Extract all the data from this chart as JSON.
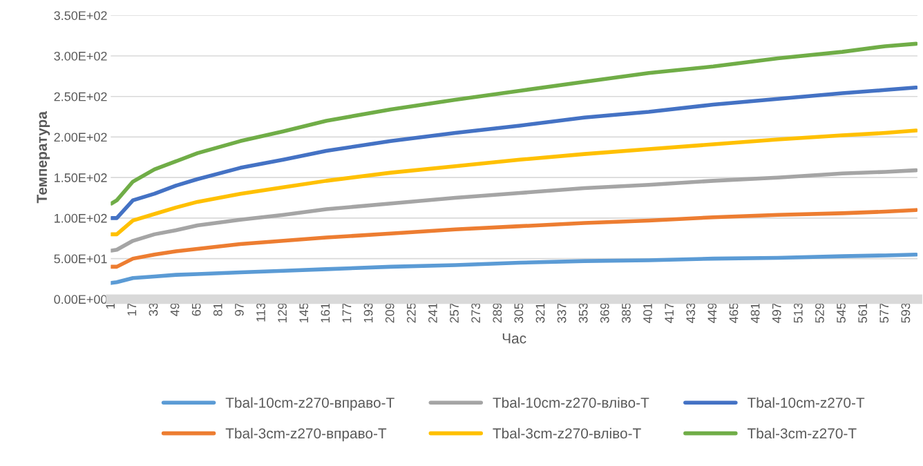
{
  "chart_data": {
    "type": "line",
    "xlabel": "Час",
    "ylabel": "Температура",
    "x": [
      1,
      5,
      17,
      33,
      49,
      65,
      97,
      129,
      161,
      209,
      257,
      305,
      353,
      401,
      449,
      497,
      545,
      577,
      600
    ],
    "series": [
      {
        "name": "Tbal-10cm-z270-вправо-T",
        "color": "#5b9bd5",
        "values": [
          20,
          21,
          26,
          28,
          30,
          31,
          33,
          35,
          37,
          40,
          42,
          45,
          47,
          48,
          50,
          51,
          53,
          54,
          55
        ]
      },
      {
        "name": "Tbal-3cm-z270-вправо-T",
        "color": "#ed7d31",
        "values": [
          40,
          40,
          50,
          55,
          59,
          62,
          68,
          72,
          76,
          81,
          86,
          90,
          94,
          97,
          101,
          104,
          106,
          108,
          110
        ]
      },
      {
        "name": "Tbal-10cm-z270-вліво-T",
        "color": "#a5a5a5",
        "values": [
          60,
          61,
          72,
          80,
          85,
          91,
          98,
          104,
          111,
          118,
          125,
          131,
          137,
          141,
          146,
          150,
          155,
          157,
          159
        ]
      },
      {
        "name": "Tbal-3cm-z270-вліво-T",
        "color": "#ffc000",
        "values": [
          80,
          80,
          97,
          105,
          113,
          120,
          130,
          138,
          146,
          156,
          164,
          172,
          179,
          185,
          191,
          197,
          202,
          205,
          208
        ]
      },
      {
        "name": "Tbal-10cm-z270-T",
        "color": "#4472c4",
        "values": [
          100,
          100,
          122,
          130,
          140,
          148,
          162,
          172,
          183,
          195,
          205,
          214,
          224,
          231,
          240,
          247,
          254,
          258,
          261
        ]
      },
      {
        "name": "Tbal-3cm-z270-T",
        "color": "#70ad47",
        "values": [
          118,
          122,
          145,
          160,
          170,
          180,
          195,
          207,
          220,
          234,
          246,
          257,
          268,
          279,
          287,
          297,
          305,
          312,
          315
        ]
      }
    ],
    "xlim": [
      0.5,
      601
    ],
    "xticks": [
      1,
      17,
      33,
      49,
      65,
      81,
      97,
      113,
      129,
      145,
      161,
      177,
      193,
      209,
      225,
      241,
      257,
      273,
      289,
      305,
      321,
      337,
      353,
      369,
      385,
      401,
      417,
      433,
      449,
      465,
      481,
      497,
      513,
      529,
      545,
      561,
      577,
      593
    ],
    "ylim": [
      0,
      350
    ],
    "yticks": [
      {
        "value": 0,
        "label": "0.00E+00"
      },
      {
        "value": 50,
        "label": "5.00E+01"
      },
      {
        "value": 100,
        "label": "1.00E+02"
      },
      {
        "value": 150,
        "label": "1.50E+02"
      },
      {
        "value": 200,
        "label": "2.00E+02"
      },
      {
        "value": 250,
        "label": "2.50E+02"
      },
      {
        "value": 300,
        "label": "3.00E+02"
      },
      {
        "value": 350,
        "label": "3.50E+02"
      }
    ],
    "grid": "y",
    "legend": "bottom",
    "marker": "none",
    "line_style": "solid"
  }
}
